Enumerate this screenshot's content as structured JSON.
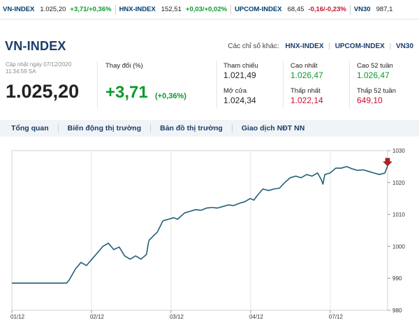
{
  "ticker": [
    {
      "name": "VN-INDEX",
      "value": "1.025,20",
      "change": "+3,71/+0,36%",
      "dir": "up"
    },
    {
      "name": "HNX-INDEX",
      "value": "152,51",
      "change": "+0,03/+0,02%",
      "dir": "up"
    },
    {
      "name": "UPCOM-INDEX",
      "value": "68,45",
      "change": "-0,16/-0,23%",
      "dir": "down"
    },
    {
      "name": "VN30",
      "value": "987,1",
      "change": "",
      "dir": "up"
    }
  ],
  "header": {
    "title": "VN-INDEX",
    "others_label": "Các chỉ số khác:",
    "others": [
      "HNX-INDEX",
      "UPCOM-INDEX",
      "VN30"
    ]
  },
  "summary": {
    "updated_line1": "Cập nhật ngày 07/12/2020",
    "updated_line2": "11:34:59 SA",
    "value": "1.025,20",
    "change_label": "Thay đổi (%)",
    "change": "+3,71",
    "change_pct": "(+0,36%)"
  },
  "stats": {
    "ref_label": "Tham chiếu",
    "ref_value": "1.021,49",
    "open_label": "Mở cửa",
    "open_value": "1.024,34",
    "high_label": "Cao nhất",
    "high_value": "1.026,47",
    "low_label": "Thấp nhất",
    "low_value": "1.022,14",
    "high52_label": "Cao 52 tuần",
    "high52_value": "1.026,47",
    "low52_label": "Thấp 52 tuần",
    "low52_value": "649,10"
  },
  "tabs": [
    "Tổng quan",
    "Biến động thị trường",
    "Bản đồ thị trường",
    "Giao dịch NĐT NN"
  ],
  "colors": {
    "accent": "#1a3d6b",
    "up": "#0a9a2a",
    "down": "#c8102e",
    "line": "#1f5f77"
  },
  "chart_data": {
    "type": "line",
    "x_ticks": [
      "01/12",
      "02/12",
      "03/12",
      "04/12",
      "07/12"
    ],
    "y_ticks": [
      980,
      990,
      1000,
      1010,
      1020,
      1030
    ],
    "ylim": [
      980,
      1030
    ],
    "series": [
      {
        "points": [
          [
            0,
            988.5
          ],
          [
            6,
            988.5
          ],
          [
            6.3,
            989.5
          ],
          [
            7,
            993
          ],
          [
            7.6,
            995
          ],
          [
            8.2,
            994
          ],
          [
            8.8,
            996
          ],
          [
            9.4,
            998
          ],
          [
            10,
            1000
          ],
          [
            10.6,
            1001
          ],
          [
            11.2,
            999
          ],
          [
            11.8,
            999.8
          ],
          [
            12.4,
            997
          ],
          [
            13,
            996
          ],
          [
            13.6,
            997
          ],
          [
            14.2,
            996
          ],
          [
            14.8,
            997.5
          ],
          [
            15,
            1001
          ],
          [
            15.1,
            1002
          ],
          [
            16,
            1004.5
          ],
          [
            16.6,
            1008
          ],
          [
            17.2,
            1008.5
          ],
          [
            17.8,
            1009
          ],
          [
            18.2,
            1008.5
          ],
          [
            18.6,
            1009.5
          ],
          [
            19,
            1010.5
          ],
          [
            19.6,
            1011
          ],
          [
            20.2,
            1011.5
          ],
          [
            20.8,
            1011.3
          ],
          [
            21.4,
            1012
          ],
          [
            22,
            1012.2
          ],
          [
            22.6,
            1012
          ],
          [
            23.2,
            1012.5
          ],
          [
            23.8,
            1013
          ],
          [
            24.4,
            1012.8
          ],
          [
            25,
            1013.5
          ],
          [
            25.6,
            1014
          ],
          [
            26.2,
            1015
          ],
          [
            26.6,
            1014.5
          ],
          [
            27,
            1016
          ],
          [
            27.6,
            1018
          ],
          [
            28.2,
            1017.5
          ],
          [
            28.8,
            1018
          ],
          [
            29.4,
            1018.2
          ],
          [
            30,
            1020
          ],
          [
            30.6,
            1021.5
          ],
          [
            31.2,
            1022
          ],
          [
            31.8,
            1021.5
          ],
          [
            32.4,
            1022.5
          ],
          [
            33,
            1022
          ],
          [
            33.6,
            1023
          ],
          [
            34,
            1021
          ],
          [
            34.2,
            1019.5
          ],
          [
            34.4,
            1022.5
          ],
          [
            35,
            1023
          ],
          [
            35.6,
            1024.5
          ],
          [
            36.2,
            1024.5
          ],
          [
            36.8,
            1025
          ],
          [
            37.4,
            1024.3
          ],
          [
            38,
            1023.8
          ],
          [
            38.6,
            1024
          ],
          [
            39.2,
            1023.5
          ],
          [
            39.8,
            1023
          ],
          [
            40.4,
            1022.5
          ],
          [
            41,
            1023
          ],
          [
            41.3,
            1025.2
          ]
        ]
      }
    ]
  }
}
